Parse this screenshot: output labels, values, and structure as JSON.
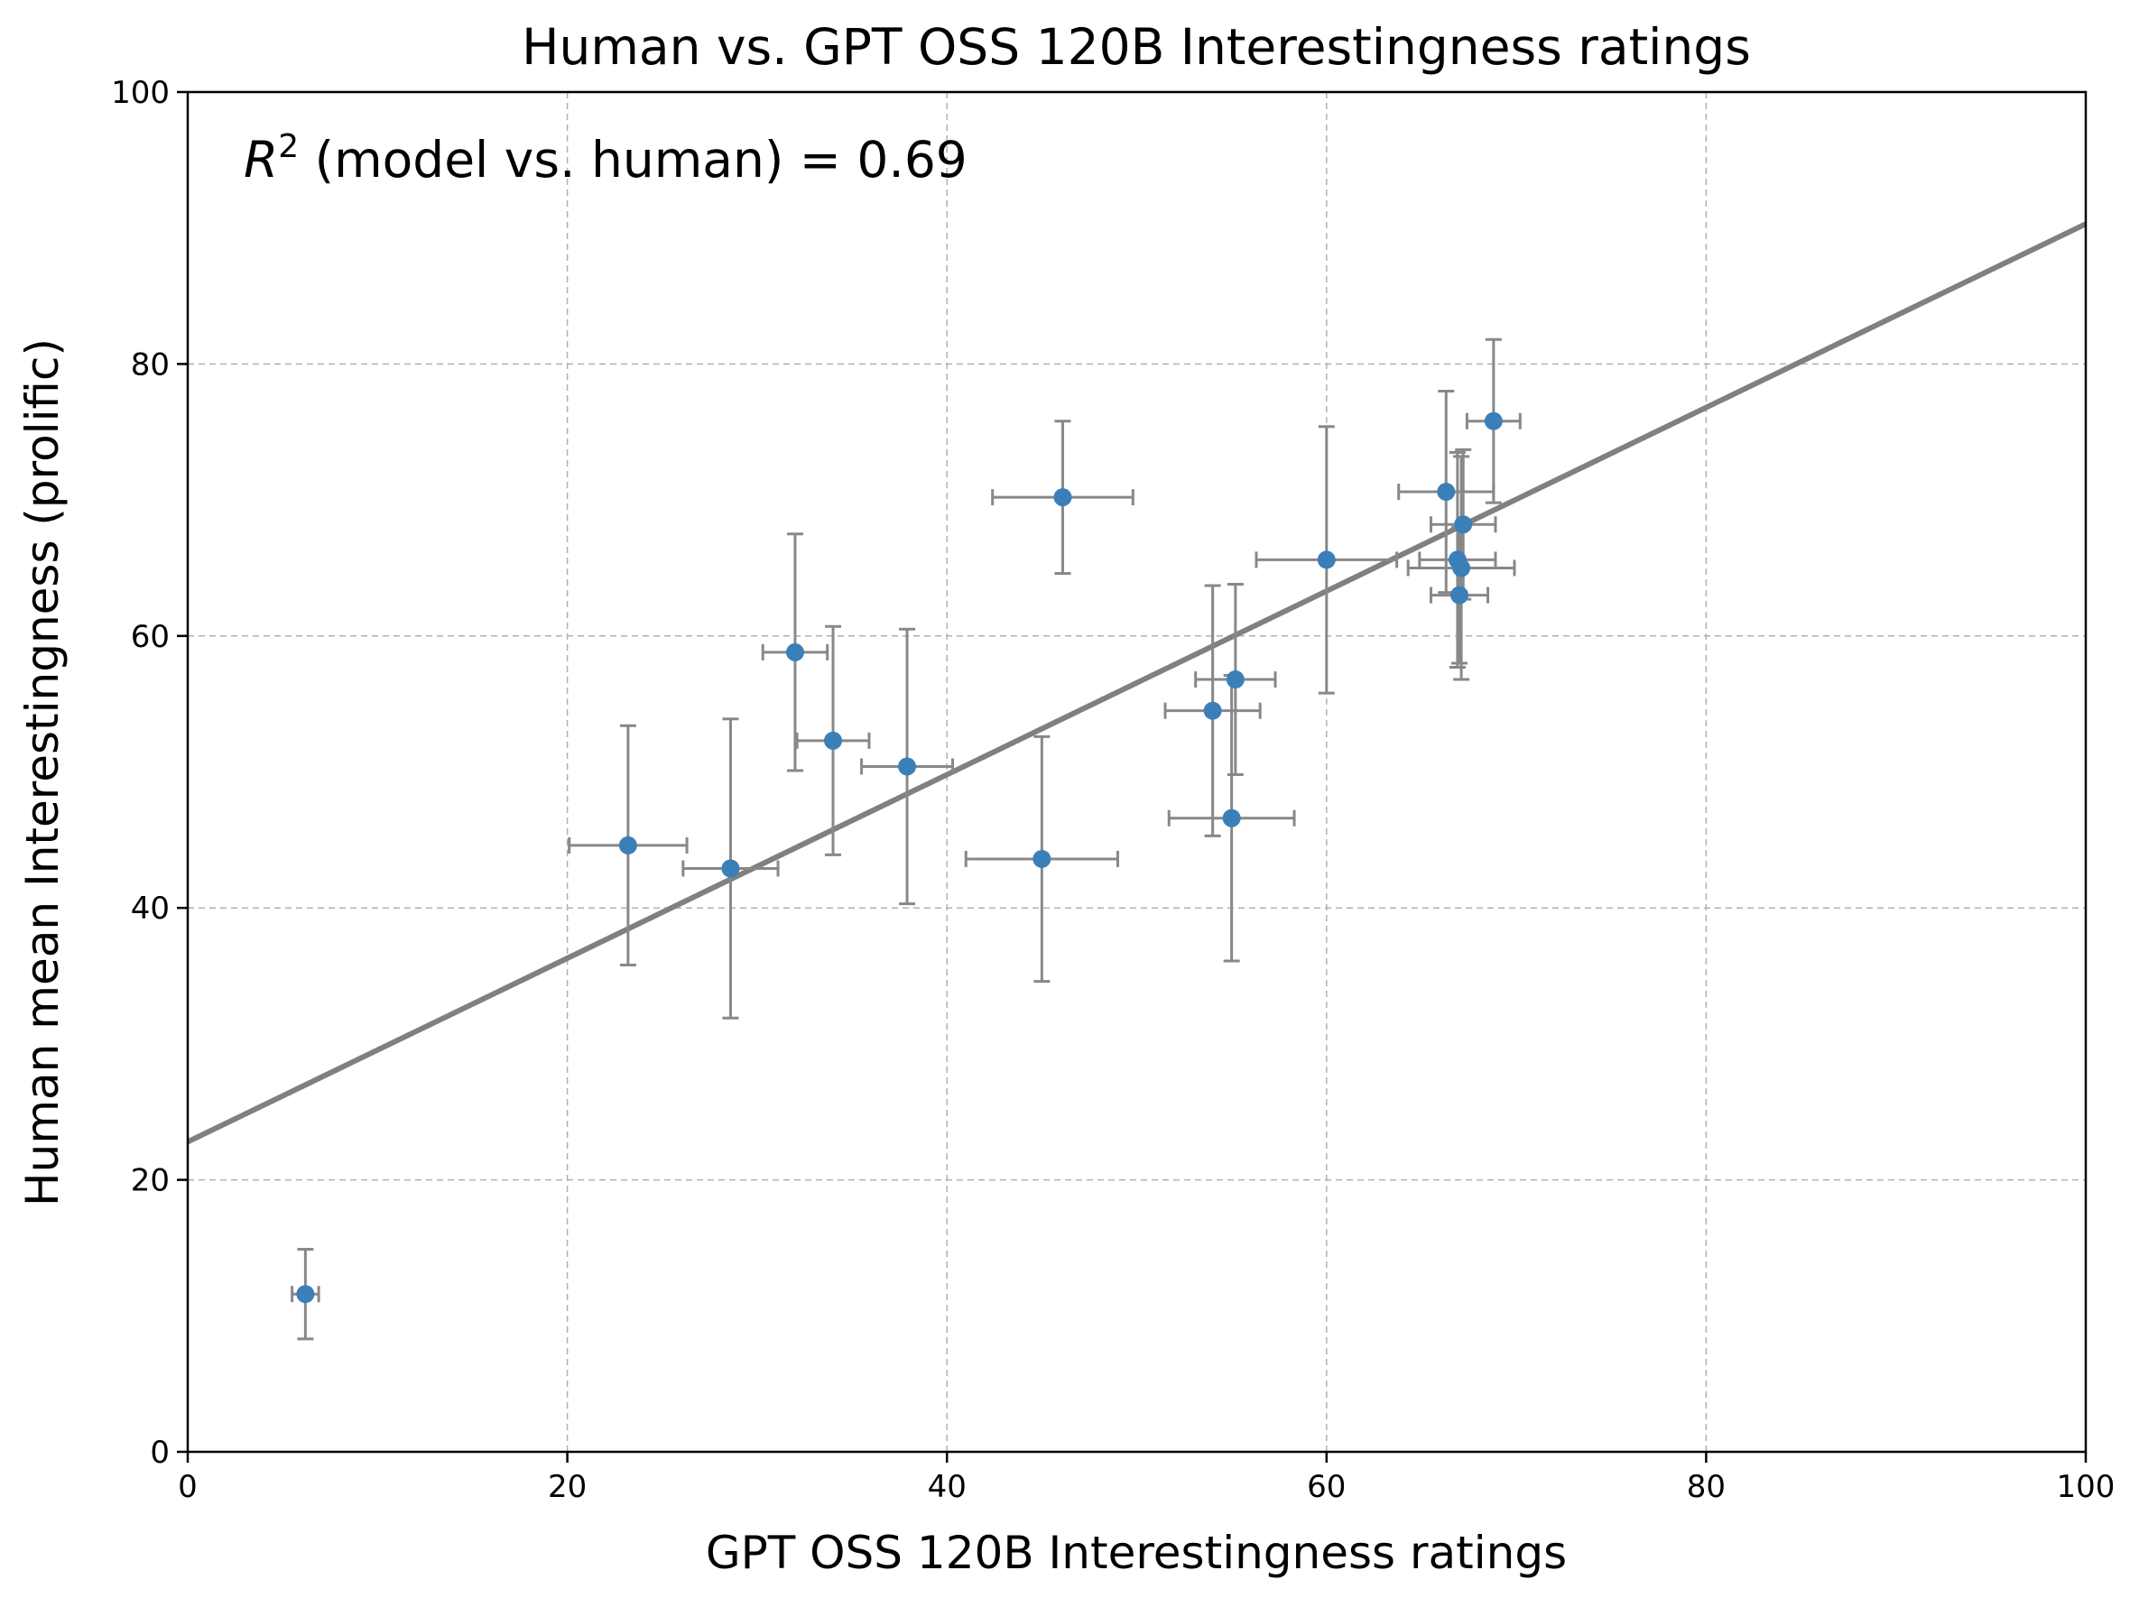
{
  "chart_data": {
    "type": "scatter",
    "title": "Human vs. GPT OSS 120B Interestingness ratings",
    "xlabel": "GPT OSS 120B Interestingness ratings",
    "ylabel": "Human mean Interestingness (prolific)",
    "xlim": [
      0,
      100
    ],
    "ylim": [
      0,
      100
    ],
    "xticks": [
      "0",
      "20",
      "40",
      "60",
      "80",
      "100"
    ],
    "yticks": [
      "0",
      "20",
      "40",
      "60",
      "80",
      "100"
    ],
    "grid": true,
    "annotation": {
      "prefix": "R",
      "superscript": "2",
      "text": " (model vs. human) = 0.69"
    },
    "fit_line": {
      "intercept": 22.8,
      "slope": 0.675
    },
    "colors": {
      "points": "#3b7fb8",
      "errorbars": "#888888",
      "fit_line": "#808080"
    },
    "points": [
      {
        "x": 6.2,
        "y": 11.6,
        "xerr": 0.7,
        "yerr": 3.3
      },
      {
        "x": 23.2,
        "y": 44.6,
        "xerr": 3.1,
        "yerr": 8.8
      },
      {
        "x": 28.6,
        "y": 42.9,
        "xerr": 2.5,
        "yerr": 11.0
      },
      {
        "x": 32.0,
        "y": 58.8,
        "xerr": 1.7,
        "yerr": 8.7
      },
      {
        "x": 34.0,
        "y": 52.3,
        "xerr": 1.9,
        "yerr": 8.4
      },
      {
        "x": 37.9,
        "y": 50.4,
        "xerr": 2.4,
        "yerr": 10.1
      },
      {
        "x": 45.0,
        "y": 43.6,
        "xerr": 4.0,
        "yerr": 9.0
      },
      {
        "x": 46.1,
        "y": 70.2,
        "xerr": 3.7,
        "yerr": 5.6
      },
      {
        "x": 54.0,
        "y": 54.5,
        "xerr": 2.5,
        "yerr": 9.2
      },
      {
        "x": 55.0,
        "y": 46.6,
        "xerr": 3.3,
        "yerr": 10.5
      },
      {
        "x": 55.2,
        "y": 56.8,
        "xerr": 2.1,
        "yerr": 7.0
      },
      {
        "x": 60.0,
        "y": 65.6,
        "xerr": 3.7,
        "yerr": 9.8
      },
      {
        "x": 66.3,
        "y": 70.6,
        "xerr": 2.5,
        "yerr": 7.4
      },
      {
        "x": 66.9,
        "y": 65.6,
        "xerr": 2.0,
        "yerr": 7.9
      },
      {
        "x": 67.0,
        "y": 63.0,
        "xerr": 1.5,
        "yerr": 5.0
      },
      {
        "x": 67.1,
        "y": 65.0,
        "xerr": 2.8,
        "yerr": 8.2
      },
      {
        "x": 67.2,
        "y": 68.2,
        "xerr": 1.7,
        "yerr": 5.5
      },
      {
        "x": 68.8,
        "y": 75.8,
        "xerr": 1.4,
        "yerr": 6.0
      }
    ]
  }
}
